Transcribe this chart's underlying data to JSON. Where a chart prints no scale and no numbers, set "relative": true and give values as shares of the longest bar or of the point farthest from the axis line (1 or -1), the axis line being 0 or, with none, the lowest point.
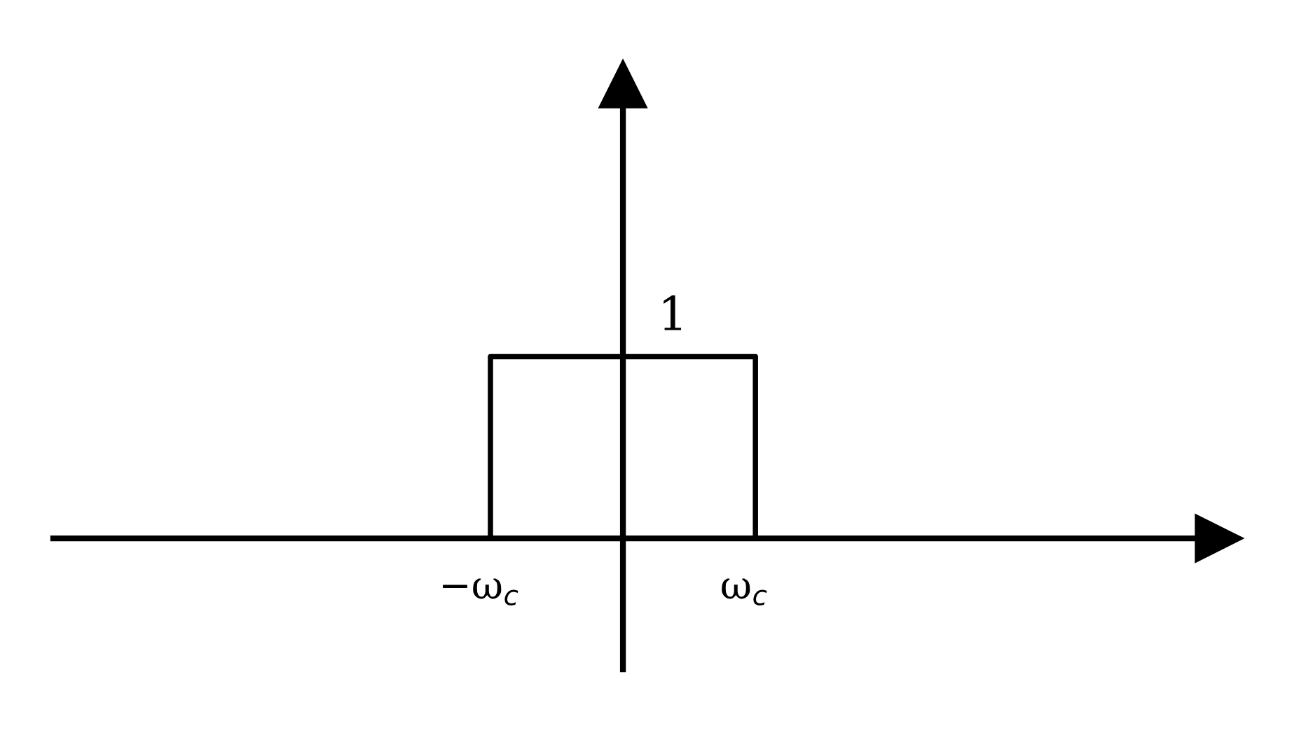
{
  "chart_data": {
    "type": "step",
    "relative": true,
    "categories": [
      null,
      null,
      null,
      "−ω$_{c}$",
      null,
      "ω$_{c}$",
      null,
      null,
      null
    ],
    "series": [
      {
        "color": "#000000",
        "values": [
          0,
          0,
          0,
          1,
          1,
          0,
          0,
          0,
          0
        ]
      }
    ],
    "annotations": [
      "1"
    ],
    "line_style": "solid"
  }
}
